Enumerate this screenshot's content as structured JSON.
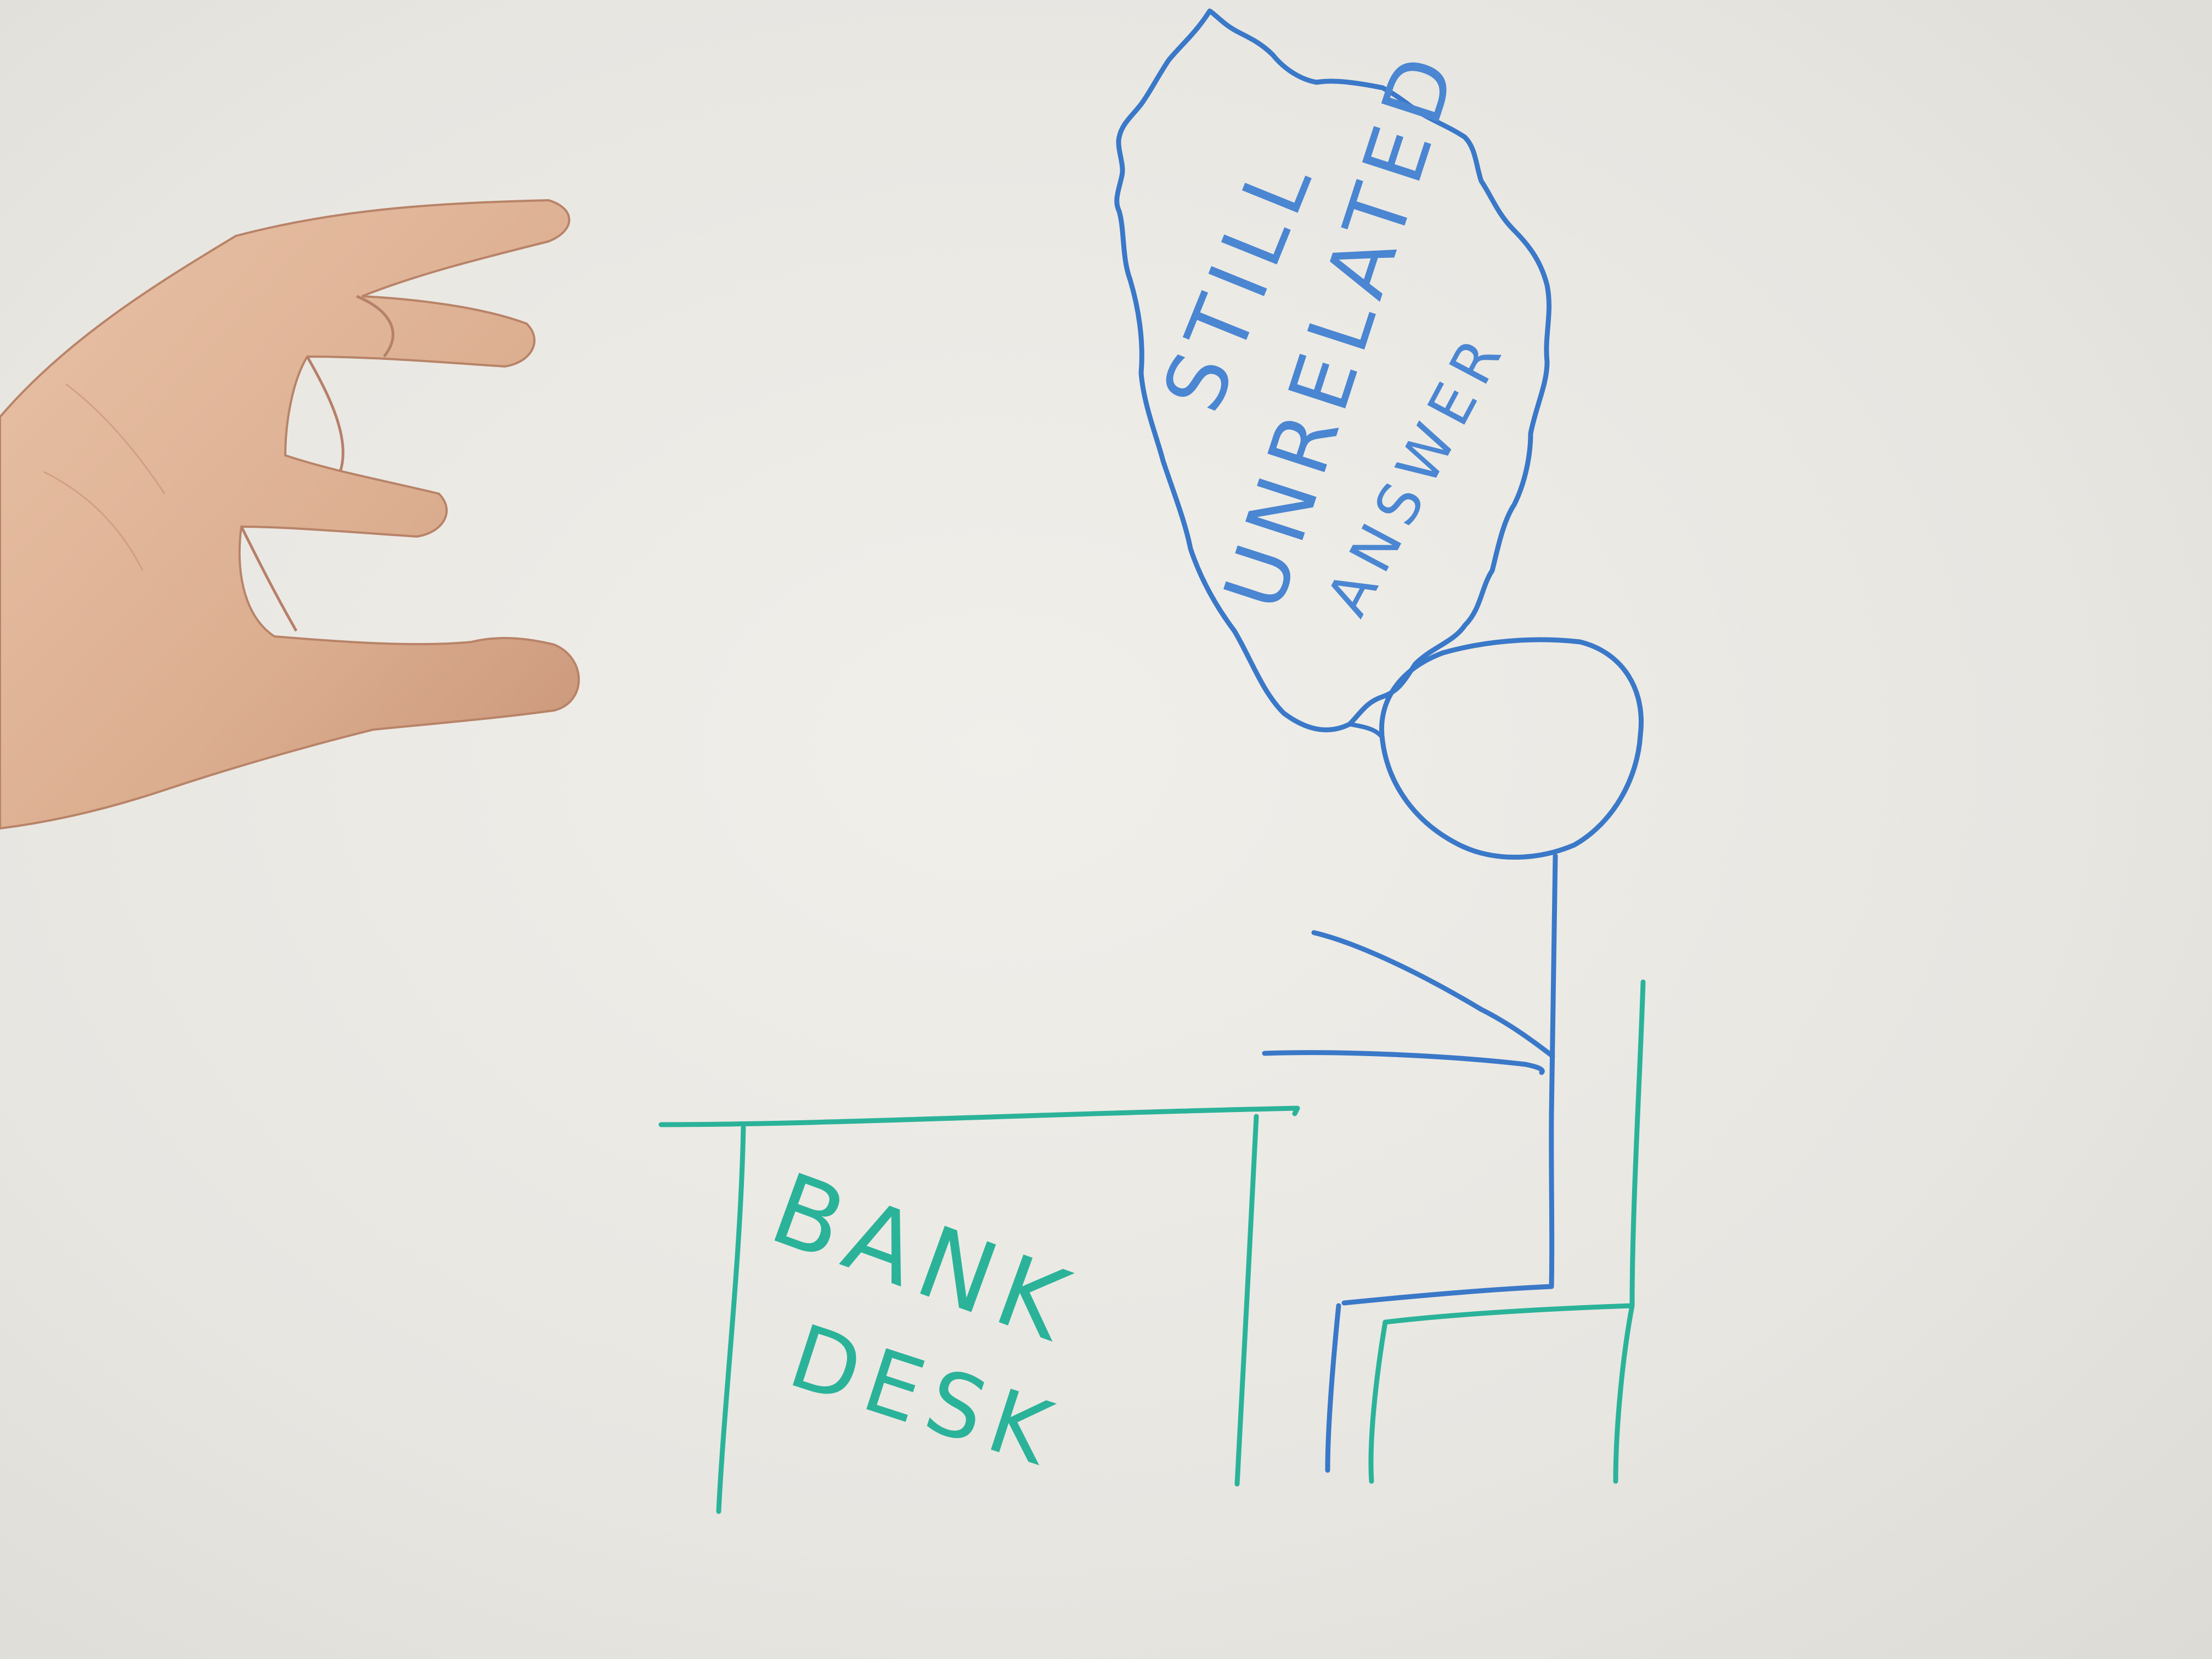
{
  "scene": {
    "thought_bubble": {
      "lines": [
        "STILL",
        "UNRELATED",
        "ANSWER"
      ]
    },
    "desk": {
      "lines": [
        "BANK",
        "DESK"
      ]
    }
  },
  "colors": {
    "whiteboard": "#e8e6e1",
    "blue_marker": "#3a78c8",
    "teal_marker": "#2bb39a",
    "skin": "#e2b79c"
  },
  "icons": {
    "hand": "reaching-hand",
    "person": "stick-figure",
    "chair": "chair",
    "desk": "desk"
  }
}
